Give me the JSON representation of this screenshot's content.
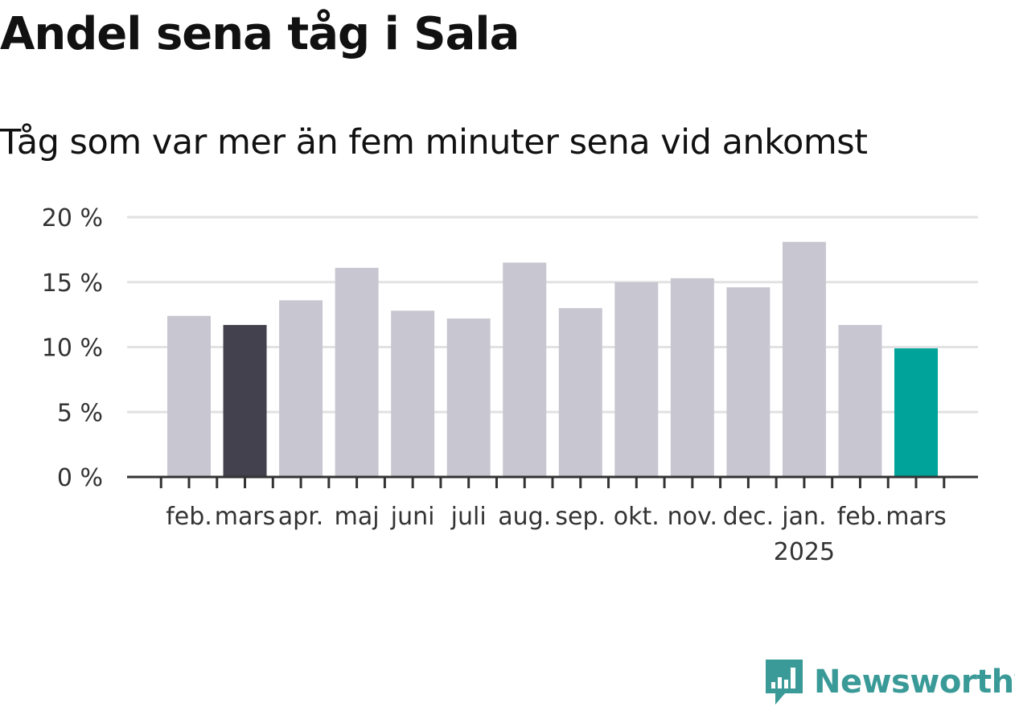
{
  "title": "Andel sena tåg i Sala",
  "subtitle": "Tåg som var mer än fem minuter sena vid ankomst",
  "brand": {
    "name": "Newsworthy",
    "color": "#3a9a97",
    "icon": "newsworthy-logo-icon"
  },
  "colors": {
    "default_bar": "#c8c7d1",
    "highlight_previous": "#43414e",
    "highlight_current": "#00a39a",
    "grid": "#e2e2e2",
    "axis": "#333333"
  },
  "chart_data": {
    "type": "bar",
    "title": "Andel sena tåg i Sala",
    "subtitle": "Tåg som var mer än fem minuter sena vid ankomst",
    "xlabel": "",
    "ylabel": "",
    "ylim": [
      0,
      20
    ],
    "yticks": [
      0,
      5,
      10,
      15,
      20
    ],
    "ytick_labels": [
      "0 %",
      "5 %",
      "10 %",
      "15 %",
      "20 %"
    ],
    "grid": true,
    "categories": [
      "feb.",
      "mars",
      "apr.",
      "maj",
      "juni",
      "juli",
      "aug.",
      "sep.",
      "okt.",
      "nov.",
      "dec.",
      "jan.",
      "feb.",
      "mars"
    ],
    "year_marker": {
      "category_index": 11,
      "label": "2025"
    },
    "values": [
      12.4,
      11.7,
      13.6,
      16.1,
      12.8,
      12.2,
      16.5,
      13.0,
      15.0,
      15.3,
      14.6,
      18.1,
      11.7,
      9.9
    ],
    "bar_colors": [
      "#c8c7d1",
      "#43414e",
      "#c8c7d1",
      "#c8c7d1",
      "#c8c7d1",
      "#c8c7d1",
      "#c8c7d1",
      "#c8c7d1",
      "#c8c7d1",
      "#c8c7d1",
      "#c8c7d1",
      "#c8c7d1",
      "#c8c7d1",
      "#00a39a"
    ]
  }
}
